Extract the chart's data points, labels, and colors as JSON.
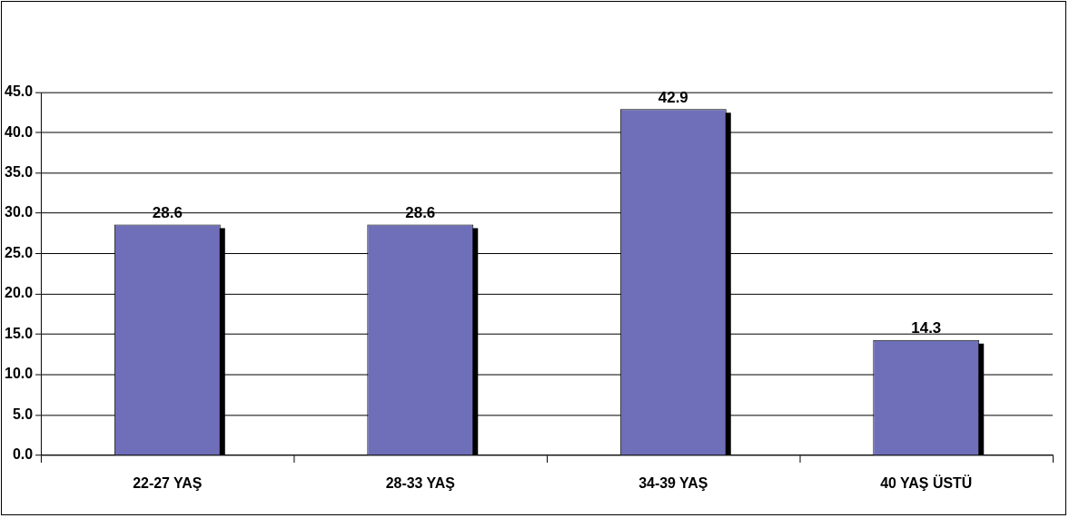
{
  "chart_data": {
    "type": "bar",
    "categories": [
      "22-27 YAŞ",
      "28-33 YAŞ",
      "34-39 YAŞ",
      "40 YAŞ ÜSTÜ"
    ],
    "values": [
      28.6,
      28.6,
      42.9,
      14.3
    ],
    "color": "#6e6fb8",
    "ylim": [
      0,
      45
    ],
    "yticks": [
      {
        "value": 0,
        "label": "0.0"
      },
      {
        "value": 5,
        "label": "5.0"
      },
      {
        "value": 10,
        "label": "10.0"
      },
      {
        "value": 15,
        "label": "15.0"
      },
      {
        "value": 20,
        "label": "20.0"
      },
      {
        "value": 25,
        "label": "25.0"
      },
      {
        "value": 30,
        "label": "30.0"
      },
      {
        "value": 35,
        "label": "35.0"
      },
      {
        "value": 40,
        "label": "40.0"
      },
      {
        "value": 45,
        "label": "45.0"
      }
    ],
    "grid": "y",
    "data_labels": true,
    "legend": false
  }
}
